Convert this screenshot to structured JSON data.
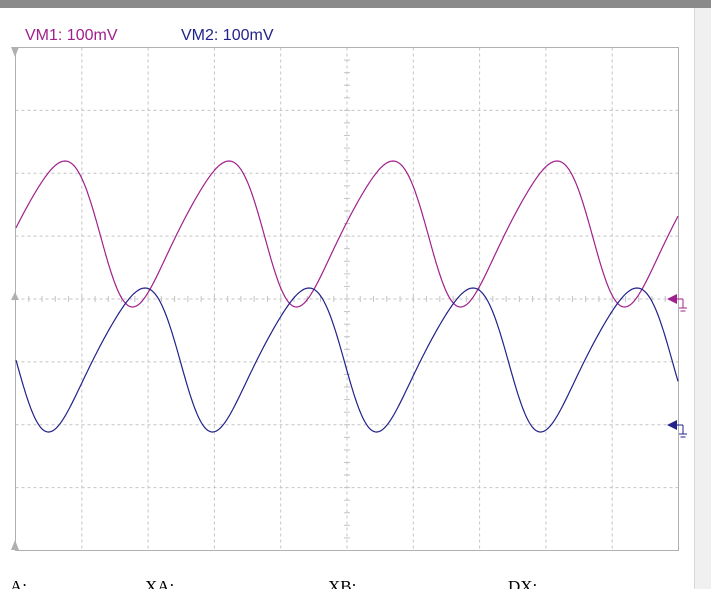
{
  "channels": [
    {
      "label": "VM1: 100mV"
    },
    {
      "label": "VM2: 100mV"
    }
  ],
  "cursor_readouts": [
    "A:",
    "XA:",
    "XB:",
    "DX:"
  ]
}
